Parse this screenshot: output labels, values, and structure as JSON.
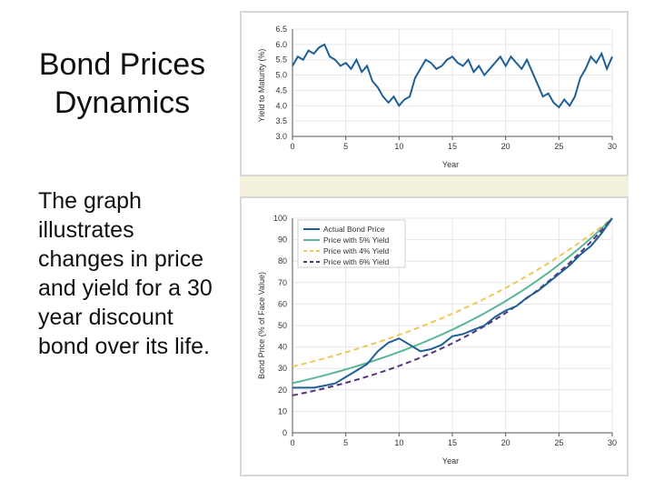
{
  "slide": {
    "title": "Bond Prices Dynamics",
    "body": "The graph illustrates changes in price and yield for a 30 year discount bond over its life."
  },
  "colors": {
    "actual": "#1f5f95",
    "five": "#5bb597",
    "four": "#f0c75a",
    "six": "#55357c",
    "band": "#f3f0dc"
  },
  "chart_data": [
    {
      "type": "line",
      "title": "",
      "xlabel": "Year",
      "ylabel": "Yield to Maturity (%)",
      "xlim": [
        0,
        30
      ],
      "ylim": [
        3.0,
        6.5
      ],
      "xticks": [
        "0",
        "5",
        "10",
        "15",
        "20",
        "25",
        "30"
      ],
      "yticks": [
        "3.0",
        "3.5",
        "4.0",
        "4.5",
        "5.0",
        "5.5",
        "6.0",
        "6.5"
      ],
      "grid": true,
      "series": [
        {
          "x": [
            0,
            0.5,
            1,
            1.5,
            2,
            2.5,
            3,
            3.5,
            4,
            4.5,
            5,
            5.5,
            6,
            6.5,
            7,
            7.5,
            8,
            8.5,
            9,
            9.5,
            10,
            10.5,
            11,
            11.5,
            12,
            12.5,
            13,
            13.5,
            14,
            14.5,
            15,
            15.5,
            16,
            16.5,
            17,
            17.5,
            18,
            18.5,
            19,
            19.5,
            20,
            20.5,
            21,
            21.5,
            22,
            22.5,
            23,
            23.5,
            24,
            24.5,
            25,
            25.5,
            26,
            26.5,
            27,
            27.5,
            28,
            28.5,
            29,
            29.5,
            30
          ],
          "values": [
            5.3,
            5.6,
            5.5,
            5.8,
            5.7,
            5.9,
            6.0,
            5.6,
            5.5,
            5.3,
            5.4,
            5.2,
            5.5,
            5.1,
            5.3,
            4.8,
            4.6,
            4.3,
            4.1,
            4.3,
            4.0,
            4.2,
            4.3,
            4.9,
            5.2,
            5.5,
            5.4,
            5.2,
            5.3,
            5.5,
            5.6,
            5.4,
            5.3,
            5.5,
            5.1,
            5.3,
            5.0,
            5.2,
            5.4,
            5.6,
            5.3,
            5.6,
            5.4,
            5.2,
            5.5,
            5.1,
            4.7,
            4.3,
            4.4,
            4.1,
            3.95,
            4.2,
            4.0,
            4.3,
            4.9,
            5.2,
            5.6,
            5.4,
            5.7,
            5.2,
            5.6
          ]
        }
      ]
    },
    {
      "type": "line",
      "title": "",
      "xlabel": "Year",
      "ylabel": "Bond Price (% of Face Value)",
      "xlim": [
        0,
        30
      ],
      "ylim": [
        0,
        100
      ],
      "xticks": [
        "0",
        "5",
        "10",
        "15",
        "20",
        "25",
        "30"
      ],
      "yticks": [
        "0",
        "10",
        "20",
        "30",
        "40",
        "50",
        "60",
        "70",
        "80",
        "90",
        "100"
      ],
      "grid": true,
      "legend_position": "top-left",
      "series": [
        {
          "name": "Actual Bond Price",
          "x": [
            0,
            1,
            2,
            3,
            4,
            5,
            6,
            7,
            8,
            9,
            10,
            11,
            12,
            13,
            14,
            15,
            16,
            17,
            18,
            19,
            20,
            21,
            22,
            23,
            24,
            25,
            26,
            27,
            28,
            29,
            30
          ],
          "values": [
            21,
            21,
            21,
            22,
            23,
            26,
            29,
            32,
            38,
            42,
            44,
            41,
            38,
            39,
            41,
            45,
            46,
            48,
            50,
            54,
            57,
            59,
            63,
            66,
            70,
            74,
            78,
            83,
            87,
            93,
            100
          ]
        },
        {
          "name": "Price with 5% Yield"
        },
        {
          "name": "Price with 4% Yield"
        },
        {
          "name": "Price with 6% Yield"
        }
      ]
    }
  ]
}
